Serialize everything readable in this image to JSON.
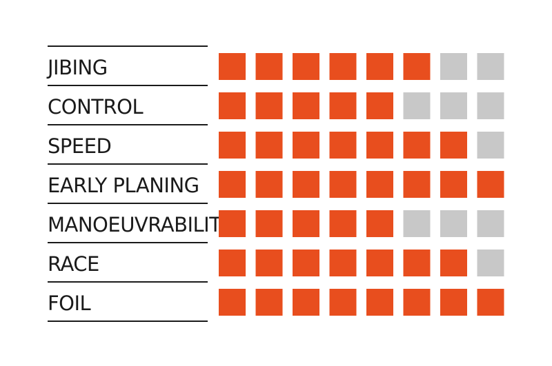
{
  "chart_data": {
    "type": "table",
    "max": 8,
    "colors": {
      "filled": "#E84E1E",
      "empty": "#C8C8C8"
    },
    "rows": [
      {
        "label": "JIBING",
        "value": 6
      },
      {
        "label": "CONTROL",
        "value": 5
      },
      {
        "label": "SPEED",
        "value": 7
      },
      {
        "label": "EARLY PLANING",
        "value": 8
      },
      {
        "label": "MANOEUVRABILITY",
        "value": 5
      },
      {
        "label": "RACE",
        "value": 7
      },
      {
        "label": "FOIL",
        "value": 8
      }
    ]
  }
}
